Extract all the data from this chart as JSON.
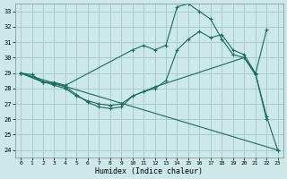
{
  "xlabel": "Humidex (Indice chaleur)",
  "bg_color": "#cce8e8",
  "grid_color": "#aacccc",
  "line_color": "#1a6b5a",
  "xlim": [
    -0.5,
    23.5
  ],
  "ylim": [
    23.5,
    33.5
  ],
  "yticks": [
    24,
    25,
    26,
    27,
    28,
    29,
    30,
    31,
    32,
    33
  ],
  "xticks": [
    0,
    1,
    2,
    3,
    4,
    5,
    6,
    7,
    8,
    9,
    10,
    11,
    12,
    13,
    14,
    15,
    16,
    17,
    18,
    19,
    20,
    21,
    22,
    23
  ],
  "lines": [
    {
      "x": [
        0,
        1,
        2,
        3,
        4,
        10,
        11,
        12,
        13,
        14,
        15,
        16,
        17,
        18,
        19,
        20,
        21,
        22
      ],
      "y": [
        29.0,
        28.9,
        28.4,
        28.4,
        28.2,
        30.5,
        30.8,
        30.5,
        30.8,
        33.3,
        33.5,
        33.0,
        32.5,
        31.2,
        30.2,
        30.0,
        28.9,
        31.8
      ]
    },
    {
      "x": [
        0,
        2,
        3,
        4,
        5,
        6,
        7,
        8,
        9,
        10,
        11,
        12,
        13,
        14,
        15,
        16,
        17,
        18,
        19,
        20,
        21,
        22,
        23
      ],
      "y": [
        29.0,
        28.4,
        28.3,
        28.1,
        27.6,
        27.1,
        26.8,
        26.7,
        26.8,
        27.5,
        27.8,
        28.0,
        28.5,
        30.5,
        31.2,
        31.7,
        31.3,
        31.5,
        30.5,
        30.2,
        29.0,
        26.2,
        24.0
      ]
    },
    {
      "x": [
        0,
        3,
        4,
        5,
        6,
        7,
        8,
        9,
        10,
        11,
        12,
        20,
        21,
        22
      ],
      "y": [
        29.0,
        28.2,
        28.0,
        27.5,
        27.2,
        27.0,
        26.9,
        27.0,
        27.5,
        27.8,
        28.1,
        30.0,
        29.0,
        26.0
      ]
    },
    {
      "x": [
        0,
        23
      ],
      "y": [
        29.0,
        24.0
      ]
    }
  ]
}
